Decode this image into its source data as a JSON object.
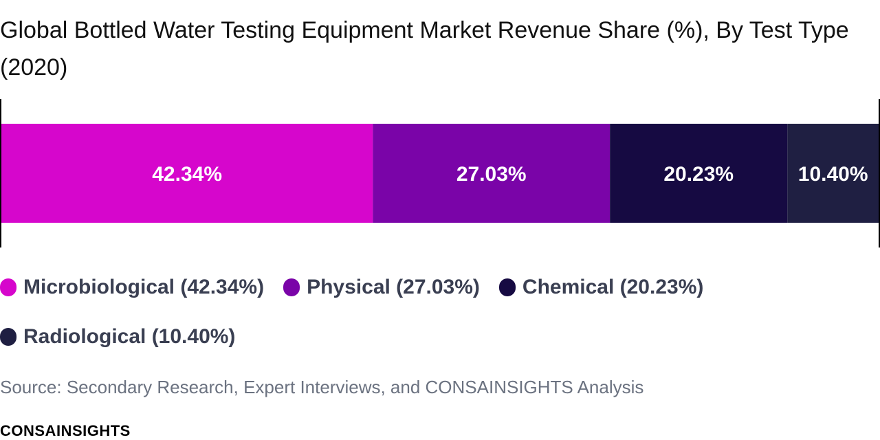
{
  "title": "Global Bottled Water Testing Equipment Market Revenue Share (%), By Test Type (2020)",
  "source": "Source: Secondary Research, Expert Interviews, and CONSAINSIGHTS Analysis",
  "brand": "CONSAINSIGHTS",
  "chart_data": {
    "type": "bar",
    "orientation": "horizontal-stacked-100",
    "title": "Global Bottled Water Testing Equipment Market Revenue Share (%), By Test Type (2020)",
    "categories": [
      "Microbiological",
      "Physical",
      "Chemical",
      "Radiological"
    ],
    "values": [
      42.34,
      27.03,
      20.23,
      10.4
    ],
    "data_labels": [
      "42.34%",
      "27.03%",
      "20.23%",
      "10.40%"
    ],
    "colors": [
      "#d606cc",
      "#7a04a8",
      "#160a42",
      "#1f1f42"
    ],
    "xlim": [
      0,
      100
    ],
    "grid": false,
    "legend_position": "bottom"
  },
  "legend": [
    {
      "label": "Microbiological (42.34%)",
      "color": "#d606cc"
    },
    {
      "label": "Physical (27.03%)",
      "color": "#7a04a8"
    },
    {
      "label": "Chemical (20.23%)",
      "color": "#160a42"
    },
    {
      "label": "Radiological (10.40%)",
      "color": "#1f1f42"
    }
  ]
}
